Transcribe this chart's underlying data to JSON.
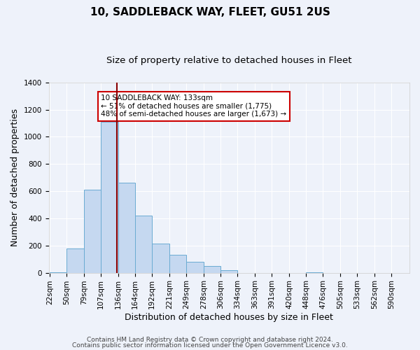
{
  "title1": "10, SADDLEBACK WAY, FLEET, GU51 2US",
  "title2": "Size of property relative to detached houses in Fleet",
  "xlabel": "Distribution of detached houses by size in Fleet",
  "ylabel": "Number of detached properties",
  "bin_labels": [
    "22sqm",
    "50sqm",
    "79sqm",
    "107sqm",
    "136sqm",
    "164sqm",
    "192sqm",
    "221sqm",
    "249sqm",
    "278sqm",
    "306sqm",
    "334sqm",
    "363sqm",
    "391sqm",
    "420sqm",
    "448sqm",
    "476sqm",
    "505sqm",
    "533sqm",
    "562sqm",
    "590sqm"
  ],
  "bin_edges": [
    22,
    50,
    79,
    107,
    136,
    164,
    192,
    221,
    249,
    278,
    306,
    334,
    363,
    391,
    420,
    448,
    476,
    505,
    533,
    562,
    590
  ],
  "bar_heights": [
    3,
    180,
    610,
    1110,
    660,
    420,
    215,
    130,
    80,
    50,
    20,
    0,
    0,
    0,
    0,
    3,
    0,
    0,
    0,
    0
  ],
  "bar_color": "#C5D8F0",
  "bar_edge_color": "#6aabd2",
  "vline_x": 133,
  "vline_color": "#8B0000",
  "annotation_text": "10 SADDLEBACK WAY: 133sqm\n← 51% of detached houses are smaller (1,775)\n48% of semi-detached houses are larger (1,673) →",
  "annotation_box_color": "white",
  "annotation_box_edge": "#cc0000",
  "ylim": [
    0,
    1400
  ],
  "yticks": [
    0,
    200,
    400,
    600,
    800,
    1000,
    1200,
    1400
  ],
  "footer1": "Contains HM Land Registry data © Crown copyright and database right 2024.",
  "footer2": "Contains public sector information licensed under the Open Government Licence v3.0.",
  "bg_color": "#EEF2FA",
  "grid_color": "#FFFFFF",
  "title1_fontsize": 11,
  "title2_fontsize": 9.5,
  "tick_fontsize": 7.5,
  "label_fontsize": 9,
  "footer_fontsize": 6.5
}
